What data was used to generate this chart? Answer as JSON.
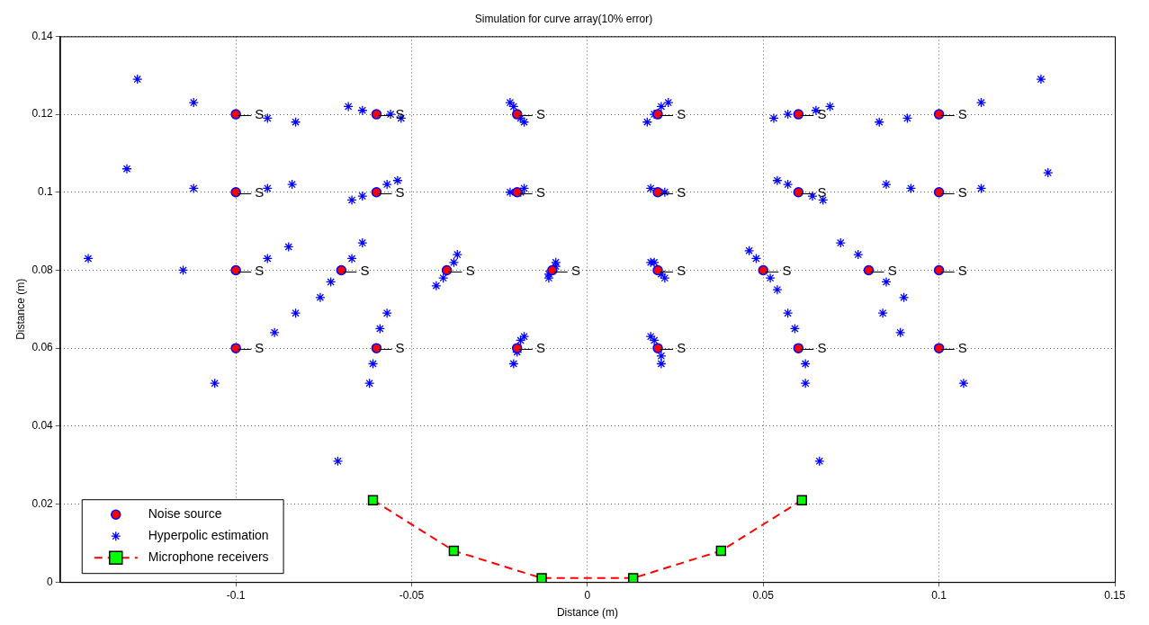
{
  "chart_data": {
    "type": "scatter",
    "title": "Simulation for curve array(10% error)",
    "xlabel": "Distance (m)",
    "ylabel": "Distance (m)",
    "xlim": [
      -0.15,
      0.15
    ],
    "xticks": [
      -0.1,
      -0.05,
      0,
      0.05,
      0.1,
      0.15
    ],
    "ylim": [
      0,
      0.14
    ],
    "yticks": [
      0,
      0.02,
      0.04,
      0.06,
      0.08,
      0.1,
      0.12,
      0.14
    ],
    "grid": true,
    "legend": "bottom left",
    "series": [
      {
        "name": "Noise source",
        "marker": "circle",
        "color": "#ff0000",
        "x": [
          -0.1,
          -0.06,
          -0.02,
          0.02,
          0.06,
          0.1,
          -0.1,
          -0.06,
          -0.02,
          0.02,
          0.06,
          0.1,
          -0.1,
          -0.07,
          -0.04,
          -0.01,
          0.02,
          0.05,
          0.08,
          0.1,
          -0.1,
          -0.06,
          -0.02,
          0.02,
          0.06,
          0.1
        ],
        "values": [
          0.12,
          0.12,
          0.12,
          0.12,
          0.12,
          0.12,
          0.1,
          0.1,
          0.1,
          0.1,
          0.1,
          0.1,
          0.08,
          0.08,
          0.08,
          0.08,
          0.08,
          0.08,
          0.08,
          0.08,
          0.06,
          0.06,
          0.06,
          0.06,
          0.06,
          0.06
        ]
      },
      {
        "name": "Hyperpolic estimation",
        "marker": "cross",
        "color": "#0000ff",
        "x": [
          -0.128,
          -0.112,
          -0.091,
          -0.083,
          -0.068,
          -0.064,
          -0.056,
          -0.053,
          -0.022,
          -0.021,
          -0.019,
          -0.018,
          0.023,
          0.021,
          0.019,
          0.017,
          0.053,
          0.057,
          0.065,
          0.069,
          0.083,
          0.091,
          0.112,
          0.129,
          -0.131,
          -0.112,
          -0.091,
          -0.084,
          -0.067,
          -0.064,
          -0.057,
          -0.054,
          -0.022,
          -0.019,
          -0.018,
          0.018,
          0.022,
          0.054,
          0.057,
          0.064,
          0.067,
          0.085,
          0.092,
          0.112,
          0.131,
          -0.142,
          -0.115,
          -0.091,
          -0.085,
          -0.064,
          -0.067,
          -0.073,
          -0.076,
          -0.083,
          -0.089,
          -0.043,
          -0.041,
          -0.038,
          -0.037,
          -0.011,
          -0.011,
          -0.009,
          -0.009,
          0.018,
          0.019,
          0.021,
          0.022,
          0.046,
          0.048,
          0.052,
          0.054,
          0.072,
          0.077,
          0.085,
          0.09,
          0.084,
          0.089,
          -0.057,
          -0.059,
          -0.061,
          -0.062,
          -0.106,
          -0.071,
          -0.018,
          -0.019,
          -0.02,
          -0.021,
          0.018,
          0.019,
          0.021,
          0.021,
          0.057,
          0.059,
          0.062,
          0.062,
          0.107,
          0.066
        ],
        "values": [
          0.129,
          0.123,
          0.119,
          0.118,
          0.122,
          0.121,
          0.12,
          0.119,
          0.123,
          0.122,
          0.119,
          0.118,
          0.123,
          0.122,
          0.12,
          0.118,
          0.119,
          0.12,
          0.121,
          0.122,
          0.118,
          0.119,
          0.123,
          0.129,
          0.106,
          0.101,
          0.101,
          0.102,
          0.098,
          0.099,
          0.102,
          0.103,
          0.1,
          0.1,
          0.101,
          0.101,
          0.1,
          0.103,
          0.102,
          0.099,
          0.098,
          0.102,
          0.101,
          0.101,
          0.105,
          0.083,
          0.08,
          0.083,
          0.086,
          0.087,
          0.083,
          0.077,
          0.073,
          0.069,
          0.064,
          0.076,
          0.078,
          0.082,
          0.084,
          0.078,
          0.079,
          0.081,
          0.082,
          0.082,
          0.082,
          0.079,
          0.078,
          0.085,
          0.083,
          0.078,
          0.075,
          0.087,
          0.084,
          0.077,
          0.073,
          0.069,
          0.064,
          0.069,
          0.065,
          0.056,
          0.051,
          0.051,
          0.031,
          0.063,
          0.062,
          0.059,
          0.056,
          0.063,
          0.062,
          0.058,
          0.056,
          0.069,
          0.065,
          0.056,
          0.051,
          0.051,
          0.031
        ]
      },
      {
        "name": "Microphone receivers",
        "type": "line",
        "marker": "square",
        "line_style": "dashed",
        "color": "#ff0000",
        "colors": [
          "#00ff00",
          "#00ff00",
          "#00ff00",
          "#00ff00",
          "#00ff00",
          "#00ff00"
        ],
        "x": [
          -0.061,
          -0.038,
          -0.013,
          0.013,
          0.038,
          0.061
        ],
        "values": [
          0.021,
          0.008,
          0.001,
          0.001,
          0.008,
          0.021
        ]
      }
    ],
    "annotations": [
      {
        "text": "— S",
        "x": -0.1,
        "y": 0.12
      },
      {
        "text": "— S",
        "x": -0.06,
        "y": 0.12
      },
      {
        "text": "— S",
        "x": -0.02,
        "y": 0.12
      },
      {
        "text": "— S",
        "x": 0.02,
        "y": 0.12
      },
      {
        "text": "— S",
        "x": 0.06,
        "y": 0.12
      },
      {
        "text": "— S",
        "x": 0.1,
        "y": 0.12
      },
      {
        "text": "— S",
        "x": -0.1,
        "y": 0.1
      },
      {
        "text": "— S",
        "x": -0.06,
        "y": 0.1
      },
      {
        "text": "— S",
        "x": -0.02,
        "y": 0.1
      },
      {
        "text": "— S",
        "x": 0.02,
        "y": 0.1
      },
      {
        "text": "— S",
        "x": 0.06,
        "y": 0.1
      },
      {
        "text": "— S",
        "x": 0.1,
        "y": 0.1
      },
      {
        "text": "— S",
        "x": -0.1,
        "y": 0.08
      },
      {
        "text": "— S",
        "x": -0.07,
        "y": 0.08
      },
      {
        "text": "— S",
        "x": -0.04,
        "y": 0.08
      },
      {
        "text": "— S",
        "x": -0.01,
        "y": 0.08
      },
      {
        "text": "— S",
        "x": 0.02,
        "y": 0.08
      },
      {
        "text": "— S",
        "x": 0.05,
        "y": 0.08
      },
      {
        "text": "— S",
        "x": 0.08,
        "y": 0.08
      },
      {
        "text": "— S",
        "x": 0.1,
        "y": 0.08
      },
      {
        "text": "— S",
        "x": -0.1,
        "y": 0.06
      },
      {
        "text": "— S",
        "x": -0.06,
        "y": 0.06
      },
      {
        "text": "— S",
        "x": -0.02,
        "y": 0.06
      },
      {
        "text": "— S",
        "x": 0.02,
        "y": 0.06
      },
      {
        "text": "— S",
        "x": 0.06,
        "y": 0.06
      },
      {
        "text": "— S",
        "x": 0.1,
        "y": 0.06
      }
    ]
  }
}
